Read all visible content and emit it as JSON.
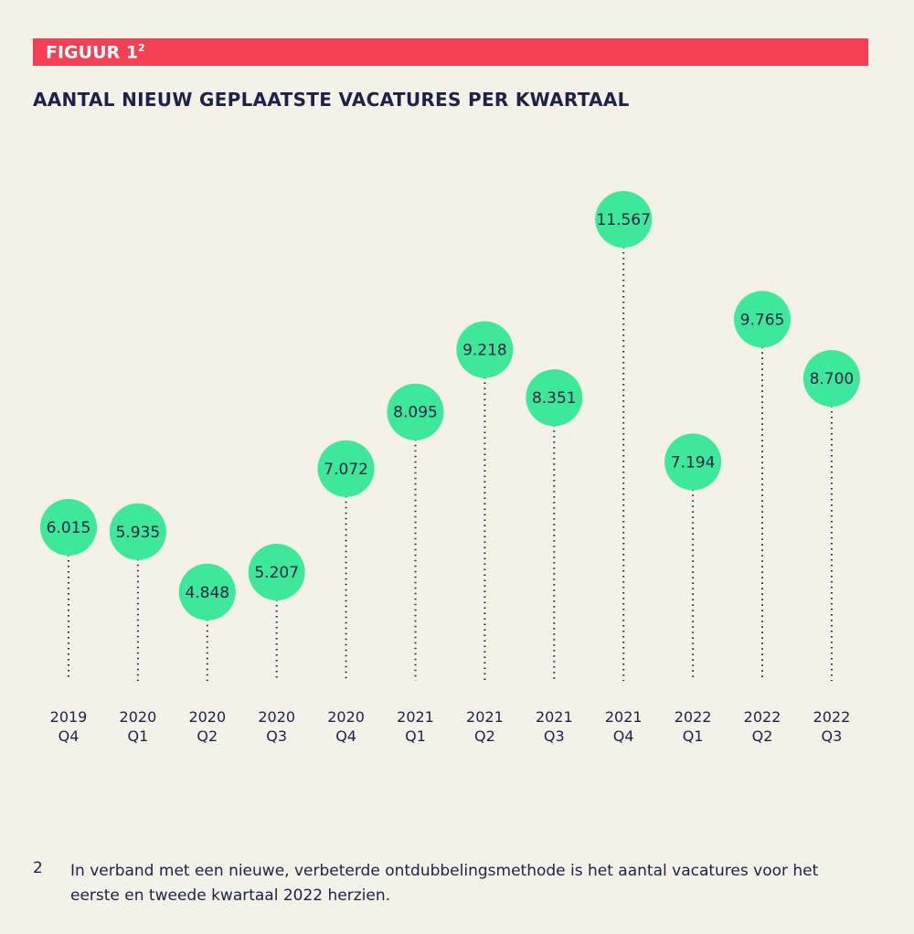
{
  "chart_data": {
    "type": "lollipop",
    "figure_label": "FIGUUR 1",
    "figure_note_ref": "2",
    "title": "AANTAL NIEUW GEPLAATSTE VACATURES PER KWARTAAL",
    "categories": [
      "2019 Q4",
      "2020 Q1",
      "2020 Q2",
      "2020 Q3",
      "2020 Q4",
      "2021 Q1",
      "2021 Q2",
      "2021 Q3",
      "2021 Q4",
      "2022 Q1",
      "2022 Q2",
      "2022 Q3"
    ],
    "values": [
      6015,
      5935,
      4848,
      5207,
      7072,
      8095,
      9218,
      8351,
      11567,
      7194,
      9765,
      8700
    ],
    "value_labels": [
      "6.015",
      "5.935",
      "4.848",
      "5.207",
      "7.072",
      "8.095",
      "9.218",
      "8.351",
      "11.567",
      "7.194",
      "9.765",
      "8.700"
    ],
    "color": "#3de89a",
    "footnote_number": "2",
    "footnote": "In verband met een nieuwe, verbeterde ontdubbelingsmethode is het aantal vacatures voor het eerste en tweede kwartaal 2022 herzien."
  }
}
